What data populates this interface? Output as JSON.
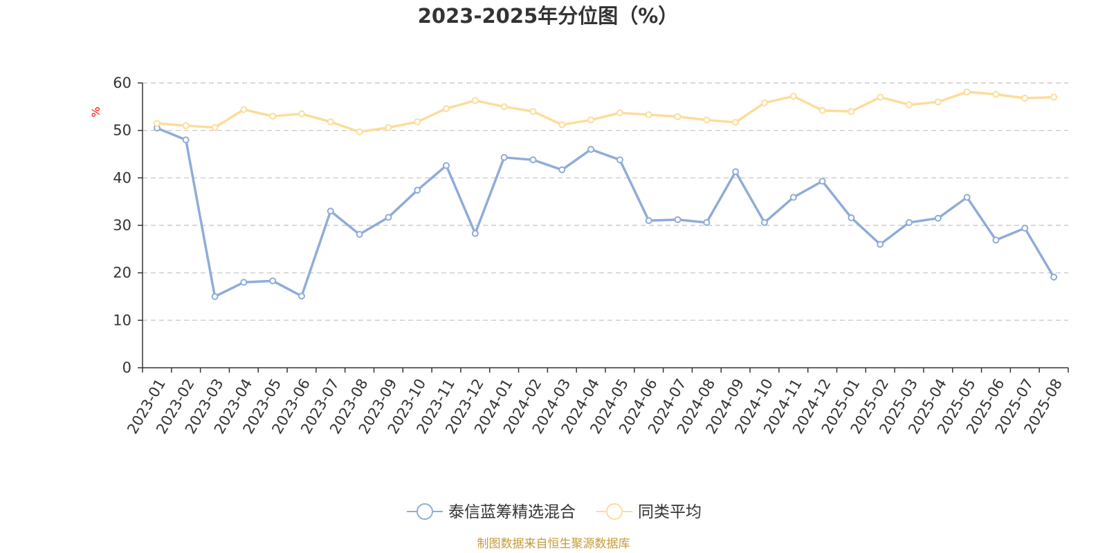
{
  "chart_data": {
    "type": "line",
    "title": "2023-2025年分位图（%）",
    "ylabel": "%",
    "xlabel": "",
    "ylim": [
      0,
      60
    ],
    "yticks": [
      0,
      10,
      20,
      30,
      40,
      50,
      60
    ],
    "grid": true,
    "legend_position": "bottom",
    "categories": [
      "2023-01",
      "2023-02",
      "2023-03",
      "2023-04",
      "2023-05",
      "2023-06",
      "2023-07",
      "2023-08",
      "2023-09",
      "2023-10",
      "2023-11",
      "2023-12",
      "2024-01",
      "2024-02",
      "2024-03",
      "2024-04",
      "2024-05",
      "2024-06",
      "2024-07",
      "2024-08",
      "2024-09",
      "2024-10",
      "2024-11",
      "2024-12",
      "2025-01",
      "2025-02",
      "2025-03",
      "2025-04",
      "2025-05",
      "2025-06",
      "2025-07",
      "2025-08"
    ],
    "series": [
      {
        "name": "泰信蓝筹精选混合",
        "color": "#8eacd9",
        "values": [
          50.5,
          48.0,
          15.0,
          18.0,
          18.3,
          15.1,
          33.0,
          28.1,
          31.7,
          37.4,
          42.6,
          28.3,
          44.3,
          43.8,
          41.7,
          46.0,
          43.8,
          31.0,
          31.2,
          30.6,
          41.3,
          30.6,
          35.9,
          39.3,
          31.6,
          26.0,
          30.6,
          31.5,
          35.9,
          26.9,
          29.4,
          19.1
        ]
      },
      {
        "name": "同类平均",
        "color": "#fddc99",
        "values": [
          51.5,
          51.0,
          50.6,
          54.4,
          53.0,
          53.5,
          51.8,
          49.7,
          50.6,
          51.8,
          54.6,
          56.3,
          55.0,
          54.0,
          51.2,
          52.2,
          53.7,
          53.3,
          52.9,
          52.2,
          51.7,
          55.8,
          57.2,
          54.2,
          54.0,
          57.0,
          55.4,
          56.0,
          58.1,
          57.6,
          56.8,
          57.0
        ]
      }
    ]
  },
  "footer": {
    "source": "制图数据来自恒生聚源数据库"
  },
  "colors": {
    "title": "#333333",
    "axis": "#333333",
    "grid": "#cccccc",
    "ylabel": "#ff0000",
    "source": "#c59a3a"
  }
}
